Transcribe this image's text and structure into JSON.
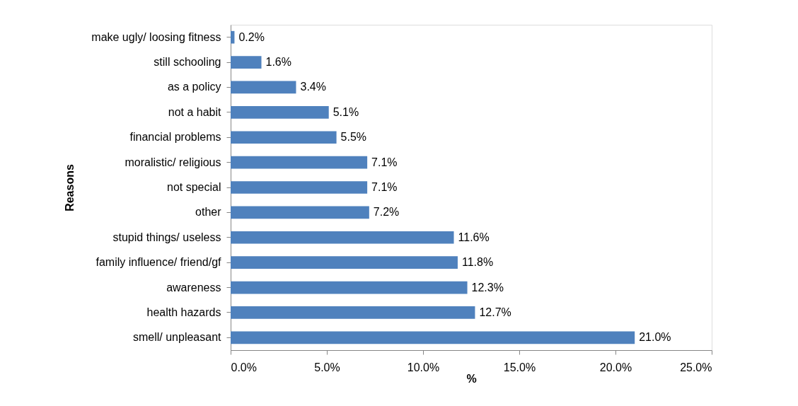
{
  "chart_data": {
    "type": "bar",
    "orientation": "horizontal",
    "xlabel": "%",
    "ylabel": "Reasons",
    "categories": [
      "make ugly/ loosing fitness",
      "still schooling",
      "as a policy",
      "not a habit",
      "financial problems",
      "moralistic/ religious",
      "not special",
      "other",
      "stupid things/ useless",
      "family influence/ friend/gf",
      "awareness",
      "health hazards",
      "smell/ unpleasant"
    ],
    "values": [
      0.2,
      1.6,
      3.4,
      5.1,
      5.5,
      7.1,
      7.1,
      7.2,
      11.6,
      11.8,
      12.3,
      12.7,
      21.0
    ],
    "value_labels": [
      "0.2%",
      "1.6%",
      "3.4%",
      "5.1%",
      "5.5%",
      "7.1%",
      "7.1%",
      "7.2%",
      "11.6%",
      "11.8%",
      "12.3%",
      "12.7%",
      "21.0%"
    ],
    "color": "#4f81bd",
    "xlim": [
      0,
      25
    ],
    "xticks": [
      {
        "value": 0,
        "label": "0.0%"
      },
      {
        "value": 5,
        "label": "5.0%"
      },
      {
        "value": 10,
        "label": "10.0%"
      },
      {
        "value": 15,
        "label": "15.0%"
      },
      {
        "value": 20,
        "label": "20.0%"
      },
      {
        "value": 25,
        "label": "25.0%"
      }
    ],
    "grid": false
  }
}
